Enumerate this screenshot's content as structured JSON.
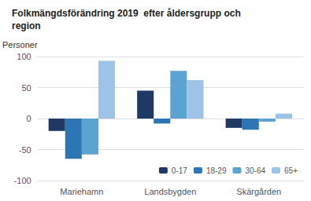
{
  "chart_data": {
    "type": "bar",
    "title": "Folkmängdsförändring 2019  efter åldersgrupp och\nregion",
    "ylabel": "Personer",
    "categories": [
      "Mariehamn",
      "Landsbygden",
      "Skärgården"
    ],
    "series": [
      {
        "name": "0-17",
        "color": "#1f3864",
        "values": [
          -20,
          45,
          -15
        ]
      },
      {
        "name": "18-29",
        "color": "#2e75b6",
        "values": [
          -65,
          -8,
          -18
        ]
      },
      {
        "name": "30-64",
        "color": "#5ba3d0",
        "values": [
          -58,
          77,
          -5
        ]
      },
      {
        "name": "65+",
        "color": "#9dc3e6",
        "values": [
          93,
          62,
          8
        ]
      }
    ],
    "ylim": [
      -100,
      100
    ],
    "yticks": [
      -100,
      -50,
      0,
      50,
      100
    ],
    "grid": true,
    "legend": "lower right"
  }
}
